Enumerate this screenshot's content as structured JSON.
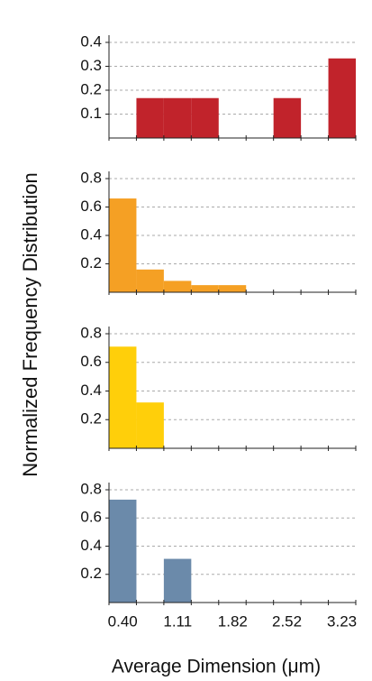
{
  "chart_data": [
    {
      "type": "histogram",
      "ylabel": "Normalized Frequency Distribution",
      "color": "#c1232b",
      "bins": [
        0.223,
        0.577,
        0.931,
        1.285,
        1.639,
        1.993,
        2.347,
        2.701,
        3.055,
        3.409
      ],
      "values": [
        0,
        0.167,
        0.167,
        0.167,
        0,
        0,
        0.167,
        0,
        0.333
      ],
      "xlim": [
        0.223,
        3.409
      ],
      "ylim": [
        0,
        0.4
      ],
      "yticks": [
        0.1,
        0.2,
        0.3,
        0.4
      ],
      "grid": true
    },
    {
      "type": "histogram",
      "color": "#f5a024",
      "bins": [
        0.223,
        0.577,
        0.931,
        1.285,
        1.639,
        1.993,
        2.347,
        2.701,
        3.055,
        3.409
      ],
      "values": [
        0.66,
        0.16,
        0.08,
        0.05,
        0.05,
        0,
        0,
        0,
        0
      ],
      "xlim": [
        0.223,
        3.409
      ],
      "ylim": [
        0,
        0.8
      ],
      "yticks": [
        0.2,
        0.4,
        0.6,
        0.8
      ],
      "grid": true
    },
    {
      "type": "histogram",
      "color": "#ffcf0a",
      "bins": [
        0.223,
        0.577,
        0.931,
        1.285,
        1.639,
        1.993,
        2.347,
        2.701,
        3.055,
        3.409
      ],
      "values": [
        0.71,
        0.32,
        0,
        0,
        0,
        0,
        0,
        0,
        0
      ],
      "xlim": [
        0.223,
        3.409
      ],
      "ylim": [
        0,
        0.8
      ],
      "yticks": [
        0.2,
        0.4,
        0.6,
        0.8
      ],
      "grid": true
    },
    {
      "type": "histogram",
      "color": "#6b8aaa",
      "xlabel": "Average Dimension (μm)",
      "bins": [
        0.223,
        0.577,
        0.931,
        1.285,
        1.639,
        1.993,
        2.347,
        2.701,
        3.055,
        3.409
      ],
      "values": [
        0.73,
        0,
        0.31,
        0,
        0,
        0,
        0,
        0,
        0
      ],
      "xlim": [
        0.223,
        3.409
      ],
      "ylim": [
        0,
        0.8
      ],
      "yticks": [
        0.2,
        0.4,
        0.6,
        0.8
      ],
      "grid": true,
      "xticks": [
        {
          "value": 0.4,
          "label": "0.40"
        },
        {
          "value": 1.11,
          "label": "1.11"
        },
        {
          "value": 1.82,
          "label": "1.82"
        },
        {
          "value": 2.52,
          "label": "2.52"
        },
        {
          "value": 3.23,
          "label": "3.23"
        }
      ]
    }
  ]
}
